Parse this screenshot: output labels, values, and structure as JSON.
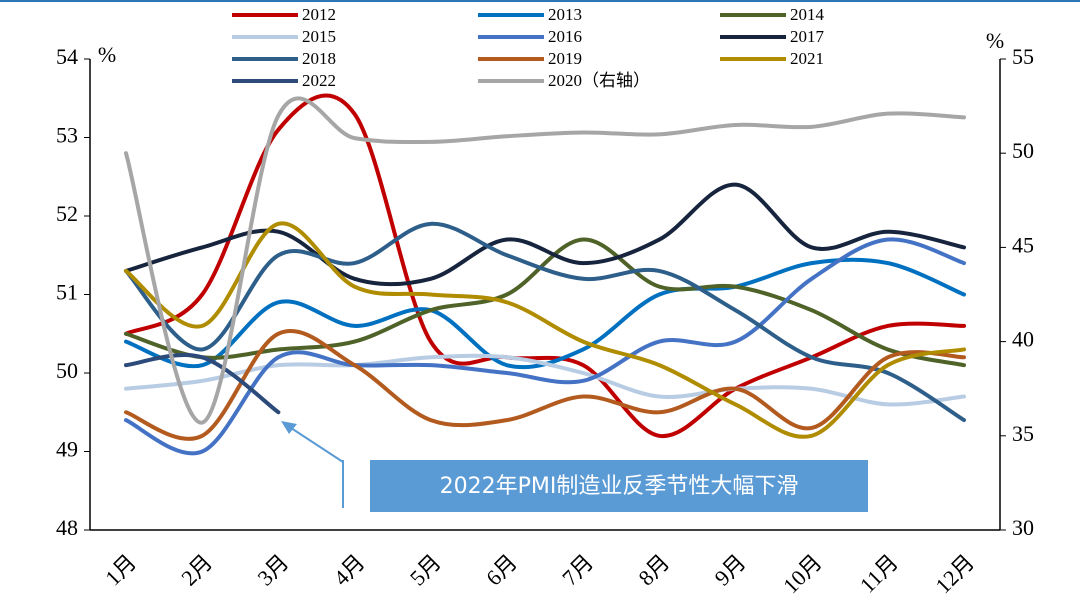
{
  "chart_data": {
    "type": "line",
    "ylabel": "%",
    "y2label": "%",
    "categories": [
      "1月",
      "2月",
      "3月",
      "4月",
      "5月",
      "6月",
      "7月",
      "8月",
      "9月",
      "10月",
      "11月",
      "12月"
    ],
    "ylim": [
      48,
      54
    ],
    "yticks": [
      48,
      49,
      50,
      51,
      52,
      53,
      54
    ],
    "y2lim": [
      30,
      55
    ],
    "y2ticks": [
      30,
      35,
      40,
      45,
      50,
      55
    ],
    "legend": "top",
    "annotation": "2022年PMI制造业反季节性大幅下滑",
    "series": [
      {
        "name": "2012",
        "color": "#c00000",
        "values": [
          50.5,
          51.0,
          53.1,
          53.3,
          50.4,
          50.2,
          50.1,
          49.2,
          49.8,
          50.2,
          50.6,
          50.6
        ]
      },
      {
        "name": "2013",
        "color": "#0070c0",
        "values": [
          50.4,
          50.1,
          50.9,
          50.6,
          50.8,
          50.1,
          50.3,
          51.0,
          51.1,
          51.4,
          51.4,
          51.0
        ]
      },
      {
        "name": "2014",
        "color": "#4f6228",
        "values": [
          50.5,
          50.2,
          50.3,
          50.4,
          50.8,
          51.0,
          51.7,
          51.1,
          51.1,
          50.8,
          50.3,
          50.1
        ]
      },
      {
        "name": "2015",
        "color": "#b8cce4",
        "values": [
          49.8,
          49.9,
          50.1,
          50.1,
          50.2,
          50.2,
          50.0,
          49.7,
          49.8,
          49.8,
          49.6,
          49.7
        ]
      },
      {
        "name": "2016",
        "color": "#4472c4",
        "values": [
          49.4,
          49.0,
          50.2,
          50.1,
          50.1,
          50.0,
          49.9,
          50.4,
          50.4,
          51.2,
          51.7,
          51.4
        ]
      },
      {
        "name": "2017",
        "color": "#17243d",
        "values": [
          51.3,
          51.6,
          51.8,
          51.2,
          51.2,
          51.7,
          51.4,
          51.7,
          52.4,
          51.6,
          51.8,
          51.6
        ]
      },
      {
        "name": "2018",
        "color": "#2e5f8a",
        "values": [
          51.3,
          50.3,
          51.5,
          51.4,
          51.9,
          51.5,
          51.2,
          51.3,
          50.8,
          50.2,
          50.0,
          49.4
        ]
      },
      {
        "name": "2019",
        "color": "#b35a1f",
        "values": [
          49.5,
          49.2,
          50.5,
          50.1,
          49.4,
          49.4,
          49.7,
          49.5,
          49.8,
          49.3,
          50.2,
          50.2
        ]
      },
      {
        "name": "2021",
        "color": "#b08c00",
        "values": [
          51.3,
          50.6,
          51.9,
          51.1,
          51.0,
          50.9,
          50.4,
          50.1,
          49.6,
          49.2,
          50.1,
          50.3
        ]
      },
      {
        "name": "2022",
        "color": "#2c4a7a",
        "values": [
          50.1,
          50.2,
          49.5,
          null,
          null,
          null,
          null,
          null,
          null,
          null,
          null,
          null
        ]
      },
      {
        "name": "2020（右轴）",
        "color": "#a6a6a6",
        "axis": "y2",
        "values": [
          50.0,
          35.7,
          52.0,
          50.8,
          50.6,
          50.9,
          51.1,
          51.0,
          51.5,
          51.4,
          52.1,
          51.9
        ]
      }
    ]
  }
}
